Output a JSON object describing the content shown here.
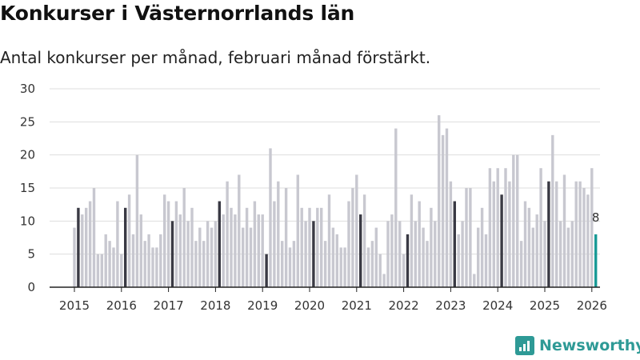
{
  "title": "Konkurser i Västernorrlands län",
  "subtitle": "Antal konkurser per månad, februari månad förstärkt.",
  "brand": {
    "name": "Newsworthy",
    "color": "#2e9a96"
  },
  "colors": {
    "bar": "#c8c8d0",
    "highlight": "#3a3a44",
    "latest": "#1a9a96",
    "grid": "#dddddd",
    "axis": "#333333"
  },
  "chart_data": {
    "type": "bar",
    "title": "Konkurser i Västernorrlands län",
    "subtitle": "Antal konkurser per månad, februari månad förstärkt.",
    "xlabel": "",
    "ylabel": "",
    "ylim": [
      0,
      30
    ],
    "yticks": [
      0,
      5,
      10,
      15,
      20,
      25,
      30
    ],
    "xtick_labels": [
      "2015",
      "2016",
      "2017",
      "2018",
      "2019",
      "2020",
      "2021",
      "2022",
      "2023",
      "2024",
      "2025",
      "2026"
    ],
    "start_month": "2015-01",
    "highlight_month": "February",
    "values": [
      9,
      12,
      11,
      12,
      13,
      15,
      5,
      5,
      8,
      7,
      6,
      13,
      5,
      12,
      14,
      8,
      20,
      11,
      7,
      8,
      6,
      6,
      8,
      14,
      13,
      10,
      13,
      11,
      15,
      10,
      12,
      7,
      9,
      7,
      10,
      9,
      10,
      13,
      11,
      16,
      12,
      11,
      17,
      9,
      12,
      9,
      13,
      11,
      11,
      5,
      21,
      13,
      16,
      7,
      15,
      6,
      7,
      17,
      12,
      10,
      12,
      10,
      12,
      12,
      7,
      14,
      9,
      8,
      6,
      6,
      13,
      15,
      17,
      11,
      14,
      6,
      7,
      9,
      5,
      2,
      10,
      11,
      24,
      10,
      5,
      8,
      14,
      10,
      13,
      9,
      7,
      12,
      10,
      26,
      23,
      24,
      16,
      13,
      8,
      10,
      15,
      15,
      2,
      9,
      12,
      8,
      18,
      16,
      18,
      14,
      18,
      16,
      20,
      20,
      7,
      13,
      12,
      9,
      11,
      18,
      10,
      16,
      23,
      16,
      10,
      17,
      9,
      10,
      16,
      16,
      15,
      14,
      18,
      8
    ],
    "annotation": {
      "label": "8",
      "target": "last"
    }
  }
}
